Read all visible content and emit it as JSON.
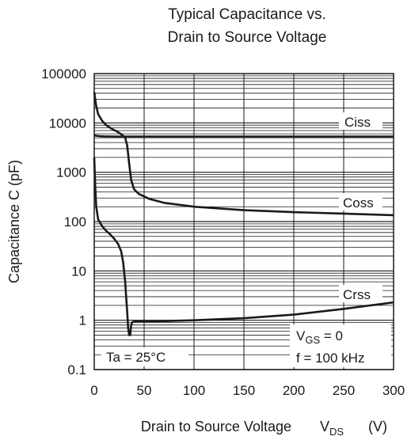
{
  "chart_data": {
    "type": "line",
    "title_lines": [
      "Typical Capacitance vs.",
      "Drain to Source Voltage"
    ],
    "xlabel": "Drain to Source Voltage",
    "xlabel_symbol": "V",
    "xlabel_symbol_sub": "DS",
    "xlabel_unit": "(V)",
    "ylabel": "Capacitance   C  (pF)",
    "xlim": [
      0,
      300
    ],
    "ylim": [
      0.1,
      100000
    ],
    "y_scale": "log",
    "x_ticks": [
      "0",
      "50",
      "100",
      "150",
      "200",
      "250",
      "300"
    ],
    "y_ticks": [
      "0.1",
      "1",
      "10",
      "100",
      "1000",
      "10000",
      "100000"
    ],
    "grid": true,
    "series": [
      {
        "name": "Ciss",
        "x": [
          0,
          2,
          5,
          10,
          20,
          30,
          50,
          100,
          150,
          200,
          250,
          300
        ],
        "y": [
          5600,
          5500,
          5400,
          5350,
          5300,
          5300,
          5300,
          5300,
          5300,
          5300,
          5300,
          5300
        ]
      },
      {
        "name": "Coss",
        "x": [
          0,
          1,
          2,
          4,
          8,
          12,
          18,
          24,
          28,
          31,
          33,
          35,
          37,
          40,
          45,
          55,
          70,
          100,
          150,
          200,
          250,
          300
        ],
        "y": [
          42000,
          30000,
          22000,
          15000,
          11000,
          9000,
          7500,
          6500,
          5700,
          5000,
          3500,
          1500,
          700,
          450,
          360,
          290,
          240,
          200,
          170,
          155,
          145,
          135
        ]
      },
      {
        "name": "Crss",
        "x": [
          0,
          1,
          2,
          4,
          8,
          12,
          16,
          20,
          24,
          27,
          29,
          31,
          32,
          33,
          34,
          35,
          36,
          37,
          38,
          40,
          45,
          60,
          100,
          150,
          200,
          250,
          300
        ],
        "y": [
          2000,
          500,
          200,
          110,
          80,
          65,
          55,
          45,
          35,
          25,
          15,
          6,
          3,
          1.5,
          0.7,
          0.5,
          0.5,
          0.8,
          0.9,
          0.95,
          0.95,
          0.95,
          1.0,
          1.1,
          1.3,
          1.7,
          2.3
        ]
      }
    ],
    "annotations": {
      "ta": "Ta = 25°C",
      "vgs_pre": "V",
      "vgs_sub": "GS",
      "vgs_post": " = 0",
      "freq": "f = 100 kHz"
    }
  }
}
